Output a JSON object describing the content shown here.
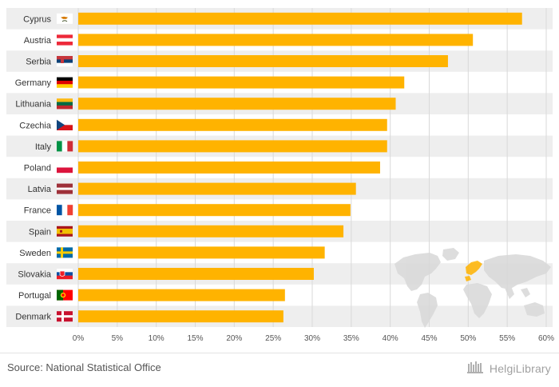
{
  "chart_data": {
    "type": "bar",
    "orientation": "horizontal",
    "categories": [
      "Cyprus",
      "Austria",
      "Serbia",
      "Germany",
      "Lithuania",
      "Czechia",
      "Italy",
      "Poland",
      "Latvia",
      "France",
      "Spain",
      "Sweden",
      "Slovakia",
      "Portugal",
      "Denmark"
    ],
    "values": [
      56.9,
      50.6,
      47.4,
      41.8,
      40.7,
      39.6,
      39.6,
      38.7,
      35.6,
      34.9,
      34.0,
      31.6,
      30.2,
      26.5,
      26.3
    ],
    "x_ticks": [
      "0%",
      "5%",
      "10%",
      "15%",
      "20%",
      "25%",
      "30%",
      "35%",
      "40%",
      "45%",
      "50%",
      "55%",
      "60%"
    ],
    "xlim": [
      0,
      60
    ],
    "grid": true,
    "bar_color": "#ffb300",
    "flags": [
      {
        "country": "Cyprus",
        "icon": "cyprus-flag-icon"
      },
      {
        "country": "Austria",
        "icon": "austria-flag-icon"
      },
      {
        "country": "Serbia",
        "icon": "serbia-flag-icon"
      },
      {
        "country": "Germany",
        "icon": "germany-flag-icon"
      },
      {
        "country": "Lithuania",
        "icon": "lithuania-flag-icon"
      },
      {
        "country": "Czechia",
        "icon": "czechia-flag-icon"
      },
      {
        "country": "Italy",
        "icon": "italy-flag-icon"
      },
      {
        "country": "Poland",
        "icon": "poland-flag-icon"
      },
      {
        "country": "Latvia",
        "icon": "latvia-flag-icon"
      },
      {
        "country": "France",
        "icon": "france-flag-icon"
      },
      {
        "country": "Spain",
        "icon": "spain-flag-icon"
      },
      {
        "country": "Sweden",
        "icon": "sweden-flag-icon"
      },
      {
        "country": "Slovakia",
        "icon": "slovakia-flag-icon"
      },
      {
        "country": "Portugal",
        "icon": "portugal-flag-icon"
      },
      {
        "country": "Denmark",
        "icon": "denmark-flag-icon"
      }
    ]
  },
  "footer": {
    "source": "Source: National Statistical Office",
    "brand": "HelgiLibrary",
    "brand_icon": "library-logo-icon"
  }
}
